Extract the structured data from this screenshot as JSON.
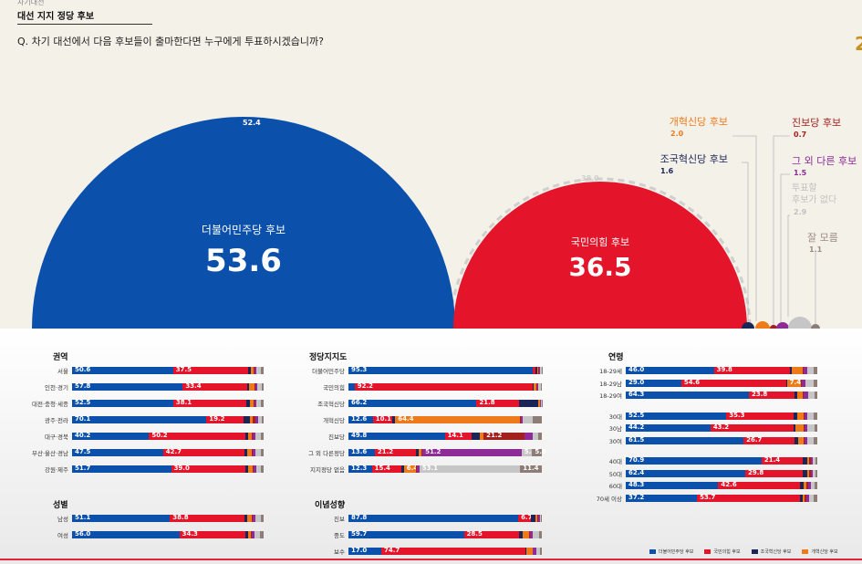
{
  "header": {
    "small_label": "차기대선",
    "title": "대선 지지 정당 후보",
    "question": "Q. 차기 대선에서 다음 후보들이 출마한다면 누구에게 투표하시겠습니까?",
    "logo": "2"
  },
  "colors": {
    "democratic": "#0b50aa",
    "ppp": "#e4152a",
    "rebuilding": "#1c2557",
    "reform": "#ee7a1a",
    "progressive": "#a3201e",
    "other": "#8e2b96",
    "none": "#c6c6c6",
    "dontknow": "#8e7d76"
  },
  "chart_data": [
    {
      "type": "bubble",
      "series": [
        {
          "name": "더불어민주당 후보",
          "value": "53.6",
          "previous": "52.4"
        },
        {
          "name": "국민의힘 후보",
          "value": "36.5",
          "previous": "38.0"
        },
        {
          "name": "조국혁신당 후보",
          "value": "1.6"
        },
        {
          "name": "개혁신당 후보",
          "value": "2.0"
        },
        {
          "name": "진보당 후보",
          "value": "0.7"
        },
        {
          "name": "그 외 다른 후보",
          "value": "1.5"
        },
        {
          "name": "투표할 후보가 없다",
          "value": "2.9"
        },
        {
          "name": "잘 모름",
          "value": "1.1"
        }
      ]
    },
    {
      "type": "stacked-bar",
      "title": "권역",
      "rows": [
        {
          "label": "서울",
          "values": [
            50.6,
            37.5,
            1.5,
            1.2,
            0.5,
            1.0,
            2.5,
            1.2
          ],
          "shown": [
            "50.6",
            "37.5"
          ]
        },
        {
          "label": "인천·경기",
          "values": [
            57.8,
            33.4,
            1.4,
            2.5,
            0.4,
            1.2,
            2.2,
            1.1
          ],
          "shown": [
            "57.8",
            "33.4"
          ]
        },
        {
          "label": "대전·충청·세종",
          "values": [
            52.5,
            38.1,
            1.5,
            2.0,
            0.4,
            1.2,
            2.5,
            1.2
          ],
          "shown": [
            "52.5",
            "38.1"
          ]
        },
        {
          "label": "광주·전라",
          "values": [
            70.1,
            19.2,
            3.5,
            1.5,
            1.2,
            1.5,
            2.0,
            1.0
          ],
          "shown": [
            "70.1",
            "19.2"
          ]
        },
        {
          "label": "대구·경북",
          "values": [
            40.2,
            50.2,
            1.5,
            2.0,
            0.5,
            1.5,
            2.5,
            1.6
          ],
          "shown": [
            "40.2",
            "50.2"
          ]
        },
        {
          "label": "부산·울산·경남",
          "values": [
            47.5,
            42.7,
            1.2,
            2.5,
            0.5,
            1.5,
            2.5,
            1.6
          ],
          "shown": [
            "47.5",
            "42.7"
          ]
        },
        {
          "label": "강원·제주",
          "values": [
            51.7,
            39.0,
            1.0,
            2.5,
            0.5,
            1.3,
            2.5,
            1.5
          ],
          "shown": [
            "51.7",
            "39.0"
          ]
        }
      ]
    },
    {
      "type": "stacked-bar",
      "title": "정당지지도",
      "rows": [
        {
          "label": "더불어민주당",
          "values": [
            95.3,
            1.5,
            1.0,
            0.5,
            0.5,
            0.5,
            0.5,
            0.2
          ],
          "shown": [
            "95.3",
            ""
          ]
        },
        {
          "label": "국민의힘",
          "values": [
            3.2,
            92.2,
            0.5,
            1.5,
            0.3,
            0.6,
            1.2,
            0.5
          ],
          "shown": [
            "",
            "92.2"
          ]
        },
        {
          "label": "조국혁신당",
          "values": [
            66.2,
            21.8,
            10.0,
            1.0,
            0.3,
            0.2,
            0.3,
            0.2
          ],
          "shown": [
            "66.2",
            "21.8"
          ]
        },
        {
          "label": "개혁신당",
          "values": [
            12.6,
            10.1,
            1.5,
            64.4,
            0.5,
            1.2,
            4.8,
            4.9
          ],
          "shown": [
            "12.6",
            "10.1",
            "",
            "64.4"
          ]
        },
        {
          "label": "진보당",
          "values": [
            49.8,
            14.1,
            4.0,
            2.0,
            21.2,
            4.0,
            3.0,
            1.9
          ],
          "shown": [
            "49.8",
            "14.1",
            "",
            "",
            "21.2"
          ]
        },
        {
          "label": "그 외 다른정당",
          "values": [
            13.6,
            21.2,
            1.5,
            1.5,
            0.5,
            51.2,
            5.5,
            5.0
          ],
          "shown": [
            "13.6",
            "21.2",
            "",
            "",
            "",
            "51.2",
            "5.5",
            "5.0"
          ]
        },
        {
          "label": "지지정당 없음",
          "values": [
            12.3,
            15.4,
            1.5,
            6.4,
            0.5,
            1.3,
            53.1,
            11.4
          ],
          "shown": [
            "12.3",
            "15.4",
            "",
            "6.4",
            "",
            "",
            "53.1",
            "11.4"
          ]
        }
      ]
    },
    {
      "type": "stacked-bar",
      "title": "연령",
      "rows": [
        {
          "label": "18-29세",
          "values": [
            46.0,
            39.8,
            1.0,
            5.5,
            0.5,
            2.0,
            3.5,
            1.7
          ],
          "shown": [
            "46.0",
            "39.8"
          ]
        },
        {
          "label": "18-29남",
          "values": [
            29.0,
            54.6,
            0.5,
            7.4,
            0.5,
            2.0,
            4.0,
            2.0
          ],
          "shown": [
            "29.0",
            "54.6",
            "",
            "7.4"
          ]
        },
        {
          "label": "18-29여",
          "values": [
            64.3,
            23.8,
            1.5,
            3.0,
            0.5,
            2.0,
            3.5,
            1.4
          ],
          "shown": [
            "64.3",
            "23.8"
          ]
        },
        {
          "label": "30대",
          "values": [
            52.5,
            35.3,
            1.5,
            3.5,
            0.5,
            1.5,
            3.5,
            1.7
          ],
          "shown": [
            "52.5",
            "35.3"
          ]
        },
        {
          "label": "30남",
          "values": [
            44.2,
            43.2,
            1.0,
            4.5,
            0.5,
            1.5,
            3.5,
            1.6
          ],
          "shown": [
            "44.2",
            "43.2"
          ]
        },
        {
          "label": "30여",
          "values": [
            61.5,
            26.7,
            2.0,
            2.5,
            0.5,
            1.5,
            3.5,
            1.8
          ],
          "shown": [
            "61.5",
            "26.7"
          ]
        },
        {
          "label": "40대",
          "values": [
            70.9,
            21.4,
            2.5,
            1.0,
            0.8,
            1.0,
            1.5,
            0.9
          ],
          "shown": [
            "70.9",
            "21.4"
          ]
        },
        {
          "label": "50대",
          "values": [
            62.4,
            29.8,
            2.5,
            1.0,
            0.8,
            1.0,
            1.5,
            1.0
          ],
          "shown": [
            "62.4",
            "29.8"
          ]
        },
        {
          "label": "60대",
          "values": [
            48.3,
            42.6,
            2.0,
            1.5,
            0.8,
            1.5,
            2.0,
            1.3
          ],
          "shown": [
            "48.3",
            "42.6"
          ]
        },
        {
          "label": "70세 이상",
          "values": [
            37.2,
            53.7,
            1.5,
            1.0,
            0.8,
            1.5,
            2.5,
            1.8
          ],
          "shown": [
            "37.2",
            "53.7"
          ]
        }
      ]
    },
    {
      "type": "stacked-bar",
      "title": "성별",
      "rows": [
        {
          "label": "남성",
          "values": [
            51.1,
            38.8,
            1.5,
            2.5,
            0.5,
            1.5,
            2.8,
            1.3
          ],
          "shown": [
            "51.1",
            "38.8"
          ]
        },
        {
          "label": "여성",
          "values": [
            56.0,
            34.3,
            1.5,
            1.5,
            0.5,
            1.5,
            3.0,
            1.7
          ],
          "shown": [
            "56.0",
            "34.3"
          ]
        }
      ]
    },
    {
      "type": "stacked-bar",
      "title": "이념성향",
      "rows": [
        {
          "label": "진보",
          "values": [
            87.8,
            6.7,
            2.0,
            1.0,
            0.8,
            0.6,
            0.6,
            0.5
          ],
          "shown": [
            "87.8",
            "6.7"
          ]
        },
        {
          "label": "중도",
          "values": [
            59.7,
            28.5,
            2.0,
            3.0,
            0.5,
            1.5,
            3.5,
            1.3
          ],
          "shown": [
            "59.7",
            "28.5"
          ]
        },
        {
          "label": "보수",
          "values": [
            17.0,
            74.7,
            0.5,
            3.0,
            0.3,
            1.5,
            2.0,
            1.0
          ],
          "shown": [
            "17.0",
            "74.7"
          ]
        }
      ]
    }
  ],
  "legend": [
    {
      "label": "더불어민주당 후보",
      "color": "#0b50aa"
    },
    {
      "label": "국민의힘 후보",
      "color": "#e4152a"
    },
    {
      "label": "조국혁신당 후보",
      "color": "#1c2557"
    },
    {
      "label": "개혁신당 후보",
      "color": "#ee7a1a"
    }
  ]
}
